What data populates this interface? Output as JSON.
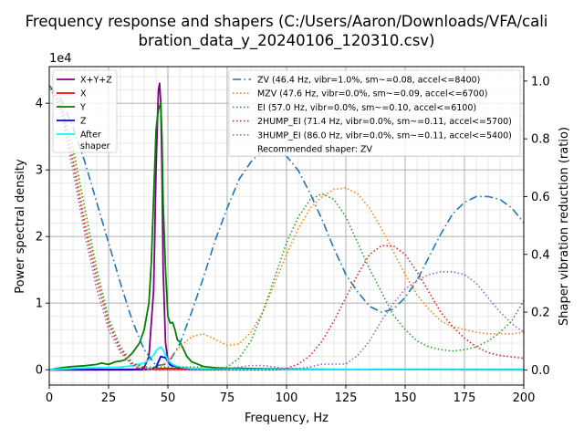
{
  "chart_data": {
    "type": "line",
    "title_lines": [
      "Frequency response and shapers (C:/Users/Aaron/Downloads/VFA/cali",
      "bration_data_y_20240106_120310.csv)"
    ],
    "xlabel": "Frequency, Hz",
    "ylabel": "Power spectral density",
    "y2label": "Shaper vibration reduction (ratio)",
    "y_offset_label": "1e4",
    "xlim": [
      0,
      200
    ],
    "ylim": [
      -2300,
      45500
    ],
    "y2lim": [
      -0.0525,
      1.05
    ],
    "x_ticks": [
      0,
      25,
      50,
      75,
      100,
      125,
      150,
      175,
      200
    ],
    "x_tick_labels": [
      "0",
      "25",
      "50",
      "75",
      "100",
      "125",
      "150",
      "175",
      "200"
    ],
    "y_ticks": [
      0,
      10000,
      20000,
      30000,
      40000
    ],
    "y_tick_labels": [
      "0",
      "1",
      "2",
      "3",
      "4"
    ],
    "y2_ticks": [
      0,
      0.2,
      0.4,
      0.6,
      0.8,
      1.0
    ],
    "y2_tick_labels": [
      "0.0",
      "0.2",
      "0.4",
      "0.6",
      "0.8",
      "1.0"
    ],
    "grid": true,
    "minor_grid": true,
    "legend_left_placement": "upper-left",
    "legend_right_placement": "upper-right",
    "psd_series": [
      {
        "name": "X+Y+Z",
        "color": "#800080",
        "style": "solid",
        "x": [
          0,
          5,
          10,
          15,
          20,
          25,
          30,
          35,
          40,
          42,
          44,
          45,
          46,
          46.5,
          47,
          47.5,
          48,
          49,
          50,
          52,
          55,
          60,
          65,
          70,
          80,
          90,
          100,
          120,
          140,
          160,
          180,
          200
        ],
        "y": [
          0,
          0,
          0,
          0,
          0,
          0,
          0,
          0,
          300,
          2000,
          12000,
          30000,
          42000,
          43000,
          40000,
          30000,
          15000,
          4000,
          1500,
          700,
          300,
          150,
          100,
          60,
          40,
          30,
          20,
          15,
          10,
          10,
          5,
          0
        ]
      },
      {
        "name": "X",
        "color": "#ff0000",
        "style": "solid",
        "x": [
          0,
          20,
          40,
          45,
          50,
          60,
          80,
          100,
          150,
          200
        ],
        "y": [
          0,
          0,
          100,
          150,
          200,
          100,
          50,
          30,
          20,
          10
        ]
      },
      {
        "name": "Y",
        "color": "#008000",
        "style": "solid",
        "x": [
          0,
          5,
          10,
          15,
          20,
          22,
          25,
          28,
          30,
          32,
          35,
          38,
          40,
          42,
          43,
          44,
          45,
          46,
          47,
          47.5,
          48,
          49,
          50,
          51,
          52,
          53,
          54,
          55,
          56,
          58,
          60,
          65,
          70,
          75,
          80,
          90,
          100,
          120,
          150,
          200
        ],
        "y": [
          0,
          300,
          500,
          600,
          800,
          1000,
          800,
          1200,
          1300,
          1500,
          2500,
          4000,
          6000,
          10000,
          16000,
          26000,
          36000,
          39000,
          40000,
          35000,
          25000,
          15000,
          8000,
          7000,
          7100,
          6000,
          4500,
          4200,
          3500,
          2000,
          1200,
          500,
          300,
          200,
          200,
          150,
          100,
          50,
          20,
          0
        ]
      },
      {
        "name": "Z",
        "color": "#0000ff",
        "style": "solid",
        "x": [
          0,
          20,
          40,
          43,
          45,
          47,
          49,
          51,
          55,
          60,
          70,
          80,
          100,
          150,
          200
        ],
        "y": [
          0,
          0,
          0,
          100,
          400,
          2000,
          1800,
          700,
          300,
          150,
          80,
          50,
          30,
          20,
          10
        ]
      },
      {
        "name": "After\nshaper",
        "color": "#00ffff",
        "style": "solid",
        "x": [
          0,
          10,
          20,
          30,
          35,
          40,
          42,
          44,
          45,
          46,
          47,
          48,
          49,
          50,
          52,
          55,
          60,
          70,
          80,
          100,
          150,
          200
        ],
        "y": [
          0,
          200,
          300,
          400,
          600,
          1000,
          1500,
          2200,
          2800,
          3200,
          3400,
          3000,
          2200,
          1400,
          800,
          400,
          200,
          100,
          60,
          30,
          10,
          0
        ]
      }
    ],
    "shaper_series": [
      {
        "name": "ZV (46.4 Hz, vibr=1.0%, sm~=0.08, accel<=8400)",
        "color": "#1f77b4",
        "style": "dashdot",
        "x": [
          0,
          5,
          10,
          15,
          20,
          25,
          30,
          35,
          40,
          45,
          50,
          55,
          60,
          65,
          70,
          75,
          80,
          85,
          90,
          95,
          100,
          105,
          110,
          115,
          120,
          125,
          130,
          135,
          140,
          145,
          150,
          155,
          160,
          165,
          170,
          175,
          180,
          185,
          190,
          195,
          200
        ],
        "y": [
          0.985,
          0.935,
          0.84,
          0.72,
          0.58,
          0.44,
          0.3,
          0.17,
          0.07,
          0.015,
          0.02,
          0.09,
          0.2,
          0.32,
          0.45,
          0.56,
          0.66,
          0.72,
          0.76,
          0.77,
          0.74,
          0.69,
          0.61,
          0.52,
          0.42,
          0.33,
          0.27,
          0.22,
          0.2,
          0.21,
          0.25,
          0.31,
          0.39,
          0.47,
          0.54,
          0.58,
          0.6,
          0.6,
          0.59,
          0.56,
          0.51
        ]
      },
      {
        "name": "MZV (47.6 Hz, vibr=0.0%, sm~=0.09, accel<=6700)",
        "color": "#ff7f0e",
        "style": "dotted",
        "x": [
          0,
          5,
          10,
          15,
          20,
          25,
          30,
          35,
          40,
          45,
          50,
          55,
          60,
          65,
          70,
          75,
          80,
          85,
          90,
          95,
          100,
          105,
          110,
          115,
          120,
          125,
          130,
          135,
          140,
          145,
          150,
          155,
          160,
          165,
          170,
          175,
          180,
          185,
          190,
          195,
          200
        ],
        "y": [
          0.985,
          0.91,
          0.74,
          0.52,
          0.33,
          0.17,
          0.07,
          0.015,
          0.0,
          0.005,
          0.03,
          0.08,
          0.115,
          0.125,
          0.105,
          0.085,
          0.09,
          0.13,
          0.2,
          0.3,
          0.4,
          0.49,
          0.56,
          0.6,
          0.625,
          0.63,
          0.61,
          0.56,
          0.49,
          0.41,
          0.33,
          0.26,
          0.21,
          0.17,
          0.15,
          0.14,
          0.13,
          0.125,
          0.125,
          0.125,
          0.13
        ]
      },
      {
        "name": "EI (57.0 Hz, vibr=0.0%, sm~=0.10, accel<=6100)",
        "color": "#2ca02c",
        "style": "dotted",
        "x": [
          0,
          5,
          10,
          15,
          20,
          25,
          30,
          35,
          40,
          45,
          50,
          55,
          60,
          65,
          70,
          75,
          80,
          85,
          90,
          95,
          100,
          105,
          110,
          115,
          120,
          125,
          130,
          135,
          140,
          145,
          150,
          155,
          160,
          165,
          170,
          175,
          180,
          185,
          190,
          195,
          200
        ],
        "y": [
          0.985,
          0.92,
          0.77,
          0.56,
          0.35,
          0.18,
          0.08,
          0.025,
          0.01,
          0.01,
          0.01,
          0.01,
          0.01,
          0.01,
          0.005,
          0.01,
          0.04,
          0.1,
          0.2,
          0.32,
          0.44,
          0.53,
          0.59,
          0.61,
          0.59,
          0.53,
          0.44,
          0.35,
          0.27,
          0.19,
          0.14,
          0.1,
          0.08,
          0.07,
          0.065,
          0.07,
          0.08,
          0.1,
          0.13,
          0.17,
          0.24
        ]
      },
      {
        "name": "2HUMP_EI (71.4 Hz, vibr=0.0%, sm~=0.11, accel<=5700)",
        "color": "#d62728",
        "style": "dotted",
        "x": [
          0,
          5,
          10,
          15,
          20,
          25,
          30,
          35,
          40,
          45,
          50,
          55,
          60,
          65,
          70,
          75,
          80,
          85,
          90,
          95,
          100,
          105,
          110,
          115,
          120,
          125,
          130,
          135,
          140,
          145,
          150,
          155,
          160,
          165,
          170,
          175,
          180,
          185,
          190,
          195,
          200
        ],
        "y": [
          0.985,
          0.9,
          0.72,
          0.5,
          0.31,
          0.16,
          0.07,
          0.02,
          0.005,
          0.0,
          0.0,
          0.0,
          0.0,
          0.0,
          0.0,
          0.0,
          0.0,
          0.0,
          0.0,
          0.0,
          0.005,
          0.02,
          0.05,
          0.1,
          0.17,
          0.25,
          0.33,
          0.4,
          0.43,
          0.43,
          0.4,
          0.34,
          0.27,
          0.2,
          0.15,
          0.11,
          0.08,
          0.06,
          0.05,
          0.045,
          0.04
        ]
      },
      {
        "name": "3HUMP_EI (86.0 Hz, vibr=0.0%, sm~=0.11, accel<=5400)",
        "color": "#9467bd",
        "style": "dotted",
        "x": [
          0,
          5,
          10,
          15,
          20,
          25,
          30,
          35,
          40,
          45,
          50,
          55,
          60,
          65,
          70,
          75,
          80,
          85,
          90,
          95,
          100,
          105,
          110,
          115,
          120,
          125,
          130,
          135,
          140,
          145,
          150,
          155,
          160,
          165,
          170,
          175,
          180,
          185,
          190,
          195,
          200
        ],
        "y": [
          0.985,
          0.89,
          0.69,
          0.47,
          0.28,
          0.14,
          0.06,
          0.015,
          0.0,
          0.0,
          0.0,
          0.0,
          0.0,
          0.0,
          0.0,
          0.005,
          0.01,
          0.015,
          0.015,
          0.01,
          0.005,
          0.005,
          0.01,
          0.02,
          0.02,
          0.02,
          0.05,
          0.1,
          0.17,
          0.23,
          0.28,
          0.31,
          0.33,
          0.34,
          0.34,
          0.33,
          0.3,
          0.25,
          0.2,
          0.16,
          0.13
        ]
      }
    ],
    "recommended_label": "Recommended shaper: ZV"
  }
}
